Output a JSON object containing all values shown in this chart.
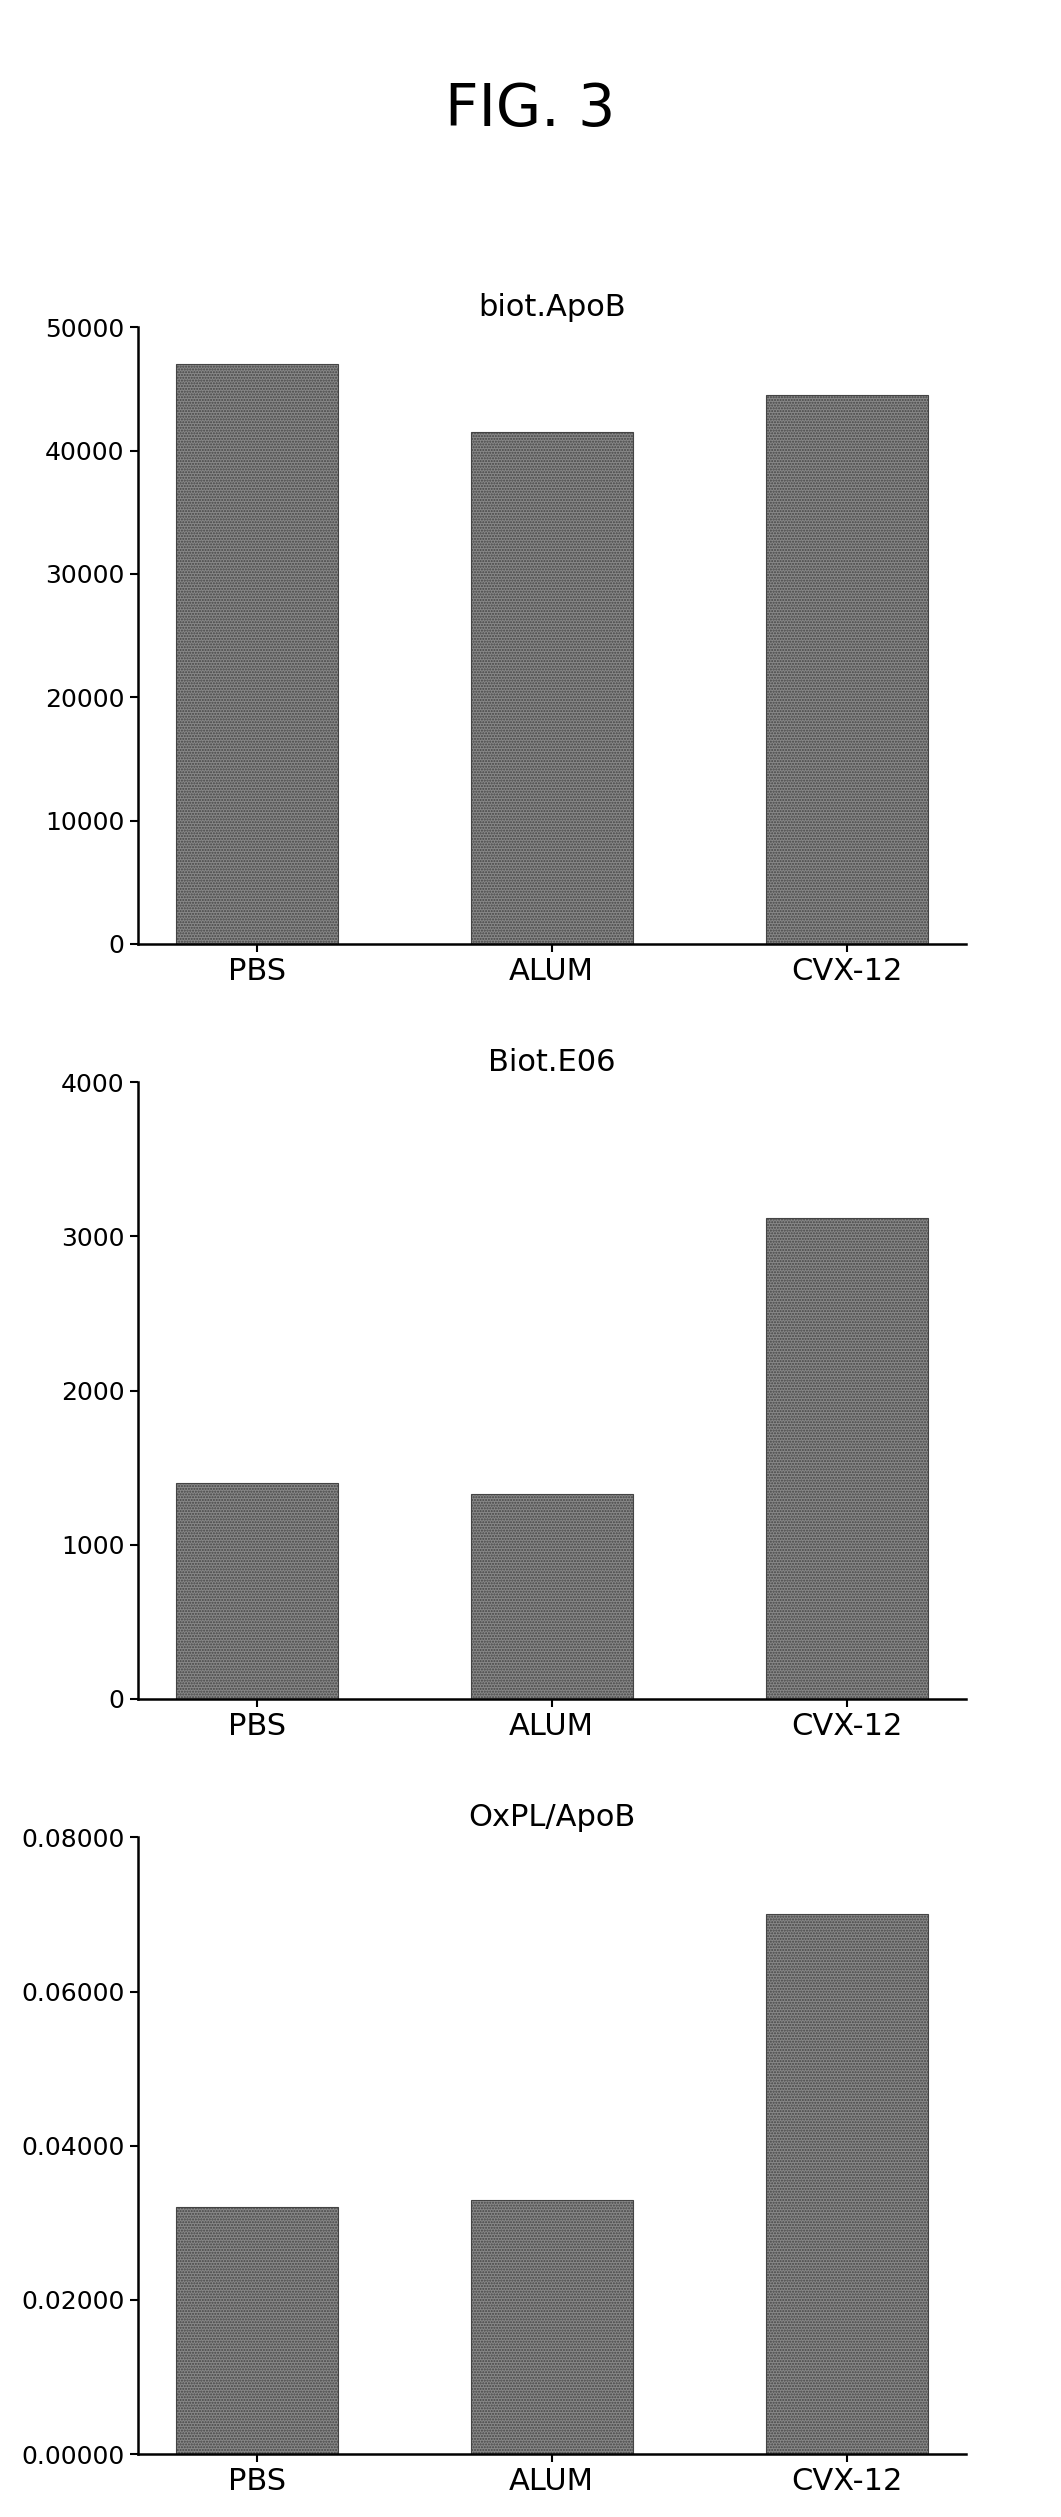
{
  "title": "FIG. 3",
  "charts": [
    {
      "title": "biot.ApoB",
      "categories": [
        "PBS",
        "ALUM",
        "CVX-12"
      ],
      "values": [
        47000,
        41500,
        44500
      ],
      "ylim": [
        0,
        50000
      ],
      "yticks": [
        0,
        10000,
        20000,
        30000,
        40000,
        50000
      ],
      "ytick_labels": [
        "0",
        "10000",
        "20000",
        "30000",
        "40000",
        "50000"
      ]
    },
    {
      "title": "Biot.E06",
      "categories": [
        "PBS",
        "ALUM",
        "CVX-12"
      ],
      "values": [
        1400,
        1330,
        3120
      ],
      "ylim": [
        0,
        4000
      ],
      "yticks": [
        0,
        1000,
        2000,
        3000,
        4000
      ],
      "ytick_labels": [
        "0",
        "1000",
        "2000",
        "3000",
        "4000"
      ]
    },
    {
      "title": "OxPL/ApoB",
      "categories": [
        "PBS",
        "ALUM",
        "CVX-12"
      ],
      "values": [
        0.032,
        0.033,
        0.07
      ],
      "ylim": [
        0,
        0.08
      ],
      "yticks": [
        0.0,
        0.02,
        0.04,
        0.06,
        0.08
      ],
      "ytick_labels": [
        "0.00000",
        "0.02000",
        "0.04000",
        "0.06000",
        "0.08000"
      ]
    }
  ],
  "bar_color": "#888888",
  "background_color": "#ffffff",
  "title_fontsize": 42,
  "subtitle_fontsize": 22,
  "tick_fontsize": 18,
  "xlabel_fontsize": 22,
  "bar_width": 0.55
}
